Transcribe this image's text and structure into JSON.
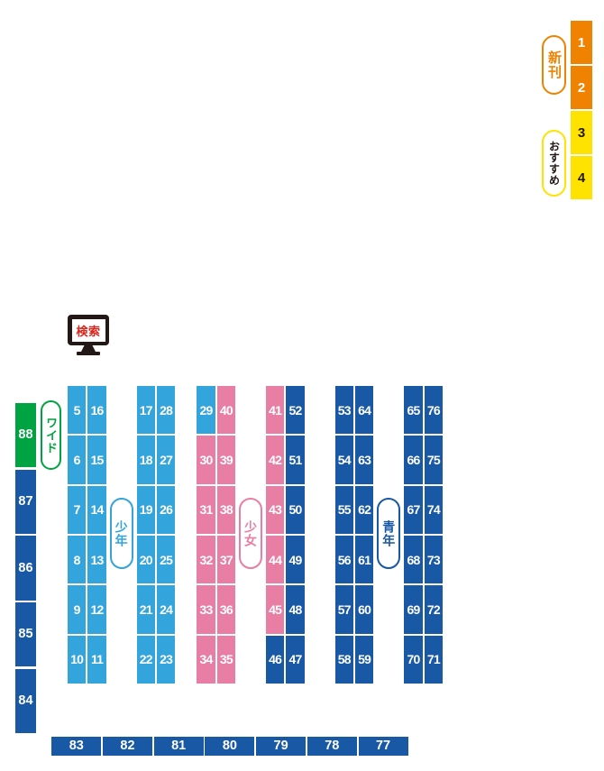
{
  "palette": {
    "lightblue": "#33A4DC",
    "pink": "#E87EA4",
    "darkblue": "#1958A5",
    "green": "#00A341",
    "orange": "#EF8200",
    "yellow": "#FFE200",
    "monitor_dark": "#231815",
    "search_red": "#D9261C",
    "dark_text": "#231815"
  },
  "right_legend": {
    "new_label": "新刊",
    "recommend_label": "おすすめ",
    "slots": [
      {
        "num": "1",
        "color": "orange",
        "text": "white"
      },
      {
        "num": "2",
        "color": "orange",
        "text": "white"
      },
      {
        "num": "3",
        "color": "yellow",
        "text": "dark"
      },
      {
        "num": "4",
        "color": "yellow",
        "text": "dark"
      }
    ]
  },
  "search_kiosk": {
    "label": "検索"
  },
  "wide_section": {
    "label": "ワイド",
    "cells": [
      {
        "n": "88",
        "c": "green"
      },
      {
        "n": "87",
        "c": "darkblue"
      },
      {
        "n": "86",
        "c": "darkblue"
      },
      {
        "n": "85",
        "c": "darkblue"
      },
      {
        "n": "84",
        "c": "darkblue"
      }
    ]
  },
  "genre_labels": [
    {
      "label": "少年",
      "color": "lightblue"
    },
    {
      "label": "少女",
      "color": "pink"
    },
    {
      "label": "青年",
      "color": "darkblue"
    }
  ],
  "shelf_columns": [
    {
      "cells": [
        {
          "n": "5",
          "c": "lightblue"
        },
        {
          "n": "6",
          "c": "lightblue"
        },
        {
          "n": "7",
          "c": "lightblue"
        },
        {
          "n": "8",
          "c": "lightblue"
        },
        {
          "n": "9",
          "c": "lightblue"
        },
        {
          "n": "10",
          "c": "lightblue"
        }
      ]
    },
    {
      "cells": [
        {
          "n": "16",
          "c": "lightblue"
        },
        {
          "n": "15",
          "c": "lightblue"
        },
        {
          "n": "14",
          "c": "lightblue"
        },
        {
          "n": "13",
          "c": "lightblue"
        },
        {
          "n": "12",
          "c": "lightblue"
        },
        {
          "n": "11",
          "c": "lightblue"
        }
      ]
    },
    {
      "cells": [
        {
          "n": "17",
          "c": "lightblue"
        },
        {
          "n": "18",
          "c": "lightblue"
        },
        {
          "n": "19",
          "c": "lightblue"
        },
        {
          "n": "20",
          "c": "lightblue"
        },
        {
          "n": "21",
          "c": "lightblue"
        },
        {
          "n": "22",
          "c": "lightblue"
        }
      ]
    },
    {
      "cells": [
        {
          "n": "28",
          "c": "lightblue"
        },
        {
          "n": "27",
          "c": "lightblue"
        },
        {
          "n": "26",
          "c": "lightblue"
        },
        {
          "n": "25",
          "c": "lightblue"
        },
        {
          "n": "24",
          "c": "lightblue"
        },
        {
          "n": "23",
          "c": "lightblue"
        }
      ]
    },
    {
      "cells": [
        {
          "n": "29",
          "c": "lightblue"
        },
        {
          "n": "30",
          "c": "pink"
        },
        {
          "n": "31",
          "c": "pink"
        },
        {
          "n": "32",
          "c": "pink"
        },
        {
          "n": "33",
          "c": "pink"
        },
        {
          "n": "34",
          "c": "pink"
        }
      ]
    },
    {
      "cells": [
        {
          "n": "40",
          "c": "pink"
        },
        {
          "n": "39",
          "c": "pink"
        },
        {
          "n": "38",
          "c": "pink"
        },
        {
          "n": "37",
          "c": "pink"
        },
        {
          "n": "36",
          "c": "pink"
        },
        {
          "n": "35",
          "c": "pink"
        }
      ]
    },
    {
      "cells": [
        {
          "n": "41",
          "c": "pink"
        },
        {
          "n": "42",
          "c": "pink"
        },
        {
          "n": "43",
          "c": "pink"
        },
        {
          "n": "44",
          "c": "pink"
        },
        {
          "n": "45",
          "c": "pink"
        },
        {
          "n": "46",
          "c": "darkblue"
        }
      ]
    },
    {
      "cells": [
        {
          "n": "52",
          "c": "darkblue"
        },
        {
          "n": "51",
          "c": "darkblue"
        },
        {
          "n": "50",
          "c": "darkblue"
        },
        {
          "n": "49",
          "c": "darkblue"
        },
        {
          "n": "48",
          "c": "darkblue"
        },
        {
          "n": "47",
          "c": "darkblue"
        }
      ]
    },
    {
      "cells": [
        {
          "n": "53",
          "c": "darkblue"
        },
        {
          "n": "54",
          "c": "darkblue"
        },
        {
          "n": "55",
          "c": "darkblue"
        },
        {
          "n": "56",
          "c": "darkblue"
        },
        {
          "n": "57",
          "c": "darkblue"
        },
        {
          "n": "58",
          "c": "darkblue"
        }
      ]
    },
    {
      "cells": [
        {
          "n": "64",
          "c": "darkblue"
        },
        {
          "n": "63",
          "c": "darkblue"
        },
        {
          "n": "62",
          "c": "darkblue"
        },
        {
          "n": "61",
          "c": "darkblue"
        },
        {
          "n": "60",
          "c": "darkblue"
        },
        {
          "n": "59",
          "c": "darkblue"
        }
      ]
    },
    {
      "cells": [
        {
          "n": "65",
          "c": "darkblue"
        },
        {
          "n": "66",
          "c": "darkblue"
        },
        {
          "n": "67",
          "c": "darkblue"
        },
        {
          "n": "68",
          "c": "darkblue"
        },
        {
          "n": "69",
          "c": "darkblue"
        },
        {
          "n": "70",
          "c": "darkblue"
        }
      ]
    },
    {
      "cells": [
        {
          "n": "76",
          "c": "darkblue"
        },
        {
          "n": "75",
          "c": "darkblue"
        },
        {
          "n": "74",
          "c": "darkblue"
        },
        {
          "n": "73",
          "c": "darkblue"
        },
        {
          "n": "72",
          "c": "darkblue"
        },
        {
          "n": "71",
          "c": "darkblue"
        }
      ]
    }
  ],
  "bottom_row": [
    {
      "n": "83",
      "c": "darkblue"
    },
    {
      "n": "82",
      "c": "darkblue"
    },
    {
      "n": "81",
      "c": "darkblue"
    },
    {
      "n": "80",
      "c": "darkblue"
    },
    {
      "n": "79",
      "c": "darkblue"
    },
    {
      "n": "78",
      "c": "darkblue"
    },
    {
      "n": "77",
      "c": "darkblue"
    }
  ]
}
